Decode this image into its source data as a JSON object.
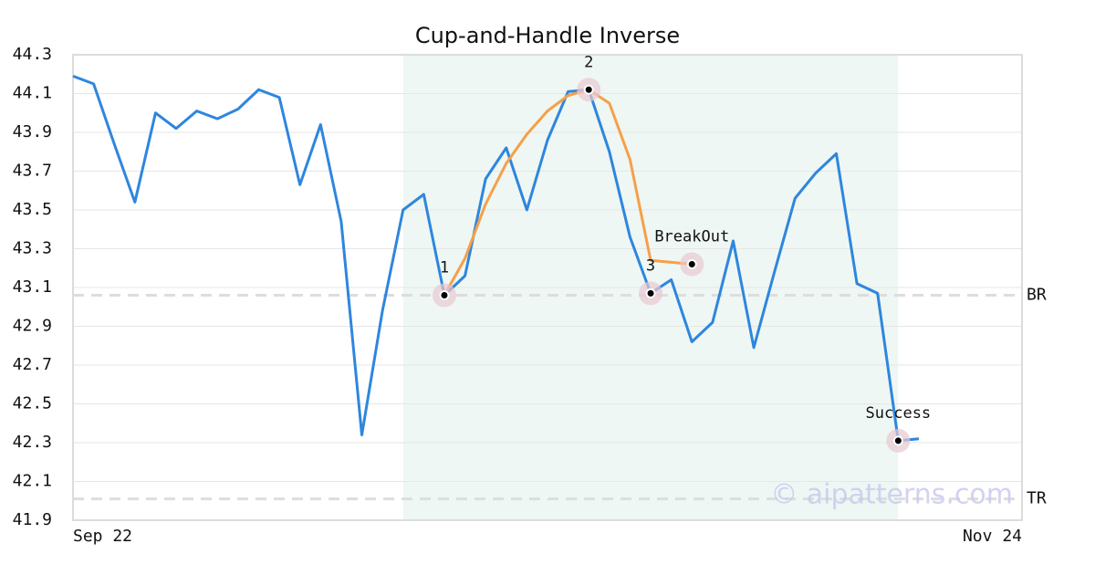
{
  "chart_data": {
    "type": "line",
    "title": "Cup-and-Handle Inverse",
    "x": [
      0,
      1,
      2,
      3,
      4,
      5,
      6,
      7,
      8,
      9,
      10,
      11,
      12,
      13,
      14,
      15,
      16,
      17,
      18,
      19,
      20,
      21,
      22,
      23,
      24,
      25,
      26,
      27,
      28,
      29,
      30,
      31,
      32,
      33,
      34,
      35,
      36,
      37,
      38,
      39,
      40,
      41
    ],
    "xlim": [
      0,
      46
    ],
    "xticks": [
      {
        "value": 0,
        "label": "Sep 22"
      },
      {
        "value": 46,
        "label": "Nov 24"
      }
    ],
    "ylim": [
      41.9,
      44.3
    ],
    "yticks": [
      41.9,
      42.1,
      42.3,
      42.5,
      42.7,
      42.9,
      43.1,
      43.3,
      43.5,
      43.7,
      43.9,
      44.1,
      44.3
    ],
    "grid": true,
    "series": [
      {
        "color": "#2e86de",
        "values": [
          44.19,
          44.15,
          43.84,
          43.54,
          44.0,
          43.92,
          44.01,
          43.97,
          44.02,
          44.12,
          44.08,
          43.63,
          43.94,
          43.44,
          42.34,
          42.98,
          43.5,
          43.58,
          43.06,
          43.16,
          43.66,
          43.82,
          43.5,
          43.86,
          44.11,
          44.12,
          43.8,
          43.36,
          43.07,
          43.14,
          42.82,
          42.92,
          43.34,
          42.79,
          43.18,
          43.56,
          43.69,
          43.79,
          43.12,
          43.07,
          42.31,
          42.32
        ]
      },
      {
        "color": "#f5a04a",
        "x": [
          18,
          19,
          20,
          21,
          22,
          23,
          24,
          25,
          26,
          27,
          28,
          30
        ],
        "values": [
          43.06,
          43.25,
          43.53,
          43.74,
          43.89,
          44.01,
          44.09,
          44.12,
          44.05,
          43.76,
          43.24,
          43.22
        ]
      }
    ],
    "shade": {
      "xrange": [
        16,
        40
      ],
      "color": "#eef7f3"
    },
    "levels": [
      {
        "label": "BR",
        "value": 43.06
      },
      {
        "label": "TR",
        "value": 42.01
      }
    ],
    "annotations": [
      {
        "label": "1",
        "x": 18,
        "y": 43.06
      },
      {
        "label": "2",
        "x": 25,
        "y": 44.12
      },
      {
        "label": "3",
        "x": 28,
        "y": 43.07
      },
      {
        "label": "BreakOut",
        "x": 30,
        "y": 43.22
      },
      {
        "label": "Success",
        "x": 40,
        "y": 42.31
      }
    ],
    "watermark": "© aipatterns.com"
  }
}
